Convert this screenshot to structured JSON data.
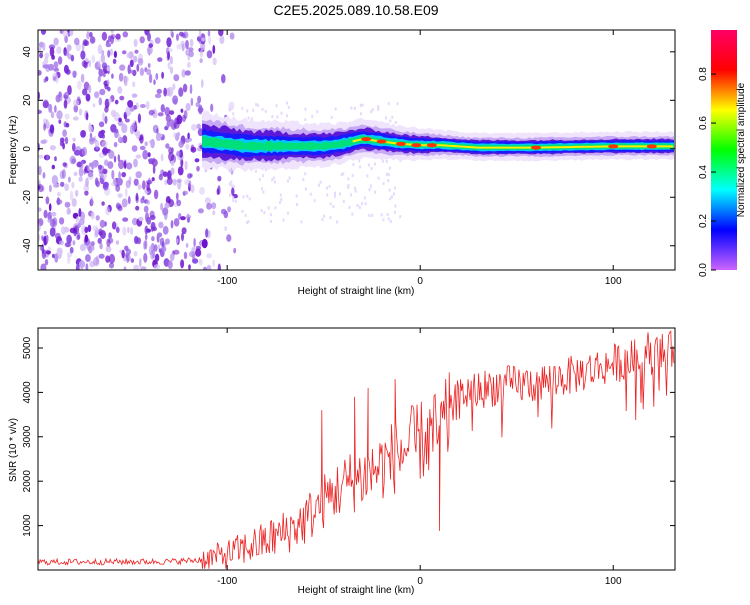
{
  "title": "C2E5.2025.089.10.58.E09",
  "colors": {
    "snr_line": "#ee2222",
    "noise": "#7722dd",
    "colorbar_stops": [
      "#cc66ff",
      "#0000ff",
      "#00ffff",
      "#00ff00",
      "#ffff00",
      "#ff0000",
      "#ff0066"
    ]
  },
  "chart_data": [
    {
      "type": "heatmap",
      "title": "C2E5.2025.089.10.58.E09",
      "xlabel": "Height of straight line (km)",
      "ylabel": "Frequency (Hz)",
      "xlim": [
        -198,
        132
      ],
      "ylim": [
        -50,
        49
      ],
      "x_ticks": [
        -100,
        0,
        100
      ],
      "y_ticks": [
        -40,
        -20,
        0,
        20,
        40
      ],
      "grid": false,
      "colorbar": {
        "label": "Normalized spectral amplitude",
        "range": [
          0,
          0.98
        ],
        "ticks": [
          "0.0",
          "0.2",
          "0.4",
          "0.6",
          "0.8"
        ]
      },
      "noise_region_x": [
        -198,
        -95
      ],
      "signal_start_x": -113,
      "signal_center_hz": [
        {
          "x": -113,
          "y": 3
        },
        {
          "x": -90,
          "y": 1
        },
        {
          "x": -70,
          "y": 1
        },
        {
          "x": -50,
          "y": 1
        },
        {
          "x": -40,
          "y": 2
        },
        {
          "x": -30,
          "y": 4
        },
        {
          "x": -20,
          "y": 3
        },
        {
          "x": -10,
          "y": 2
        },
        {
          "x": 0,
          "y": 1.5
        },
        {
          "x": 10,
          "y": 1.5
        },
        {
          "x": 30,
          "y": 0.5
        },
        {
          "x": 60,
          "y": 0.5
        },
        {
          "x": 100,
          "y": 1
        },
        {
          "x": 132,
          "y": 1
        }
      ]
    },
    {
      "type": "line",
      "xlabel": "Height of straight line (km)",
      "ylabel": "SNR (10 * v/v)",
      "xlim": [
        -198,
        132
      ],
      "ylim": [
        0,
        5450
      ],
      "x_ticks": [
        -100,
        0,
        100
      ],
      "y_ticks": [
        1000,
        2000,
        3000,
        4000,
        5000
      ],
      "grid": false,
      "series": [
        {
          "trend": [
            {
              "x": -198,
              "y": 180
            },
            {
              "x": -130,
              "y": 190
            },
            {
              "x": -115,
              "y": 220
            },
            {
              "x": -100,
              "y": 350
            },
            {
              "x": -90,
              "y": 500
            },
            {
              "x": -80,
              "y": 650
            },
            {
              "x": -70,
              "y": 850
            },
            {
              "x": -60,
              "y": 1100
            },
            {
              "x": -50,
              "y": 1550
            },
            {
              "x": -40,
              "y": 1900
            },
            {
              "x": -30,
              "y": 2100
            },
            {
              "x": -20,
              "y": 2350
            },
            {
              "x": -10,
              "y": 2650
            },
            {
              "x": 0,
              "y": 2900
            },
            {
              "x": 10,
              "y": 3100
            },
            {
              "x": 15,
              "y": 3400
            },
            {
              "x": 20,
              "y": 3950
            },
            {
              "x": 40,
              "y": 4150
            },
            {
              "x": 60,
              "y": 4200
            },
            {
              "x": 80,
              "y": 4400
            },
            {
              "x": 100,
              "y": 4650
            },
            {
              "x": 115,
              "y": 4800
            },
            {
              "x": 132,
              "y": 4950
            }
          ],
          "spikes": [
            {
              "x": -51,
              "y": 3600
            },
            {
              "x": -34,
              "y": 3900
            },
            {
              "x": -27,
              "y": 4100
            },
            {
              "x": -13,
              "y": 4300
            },
            {
              "x": 10,
              "y": 880
            },
            {
              "x": 15,
              "y": 4450
            },
            {
              "x": 118,
              "y": 5350
            }
          ]
        }
      ]
    }
  ]
}
